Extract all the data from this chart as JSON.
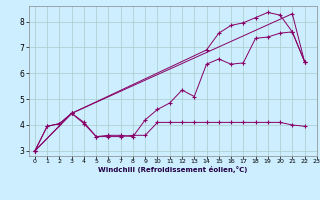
{
  "xlabel": "Windchill (Refroidissement éolien,°C)",
  "bg_color": "#cceeff",
  "grid_color": "#aacccc",
  "line_color": "#880066",
  "xlim": [
    -0.5,
    23
  ],
  "ylim": [
    2.8,
    8.6
  ],
  "xticks": [
    0,
    1,
    2,
    3,
    4,
    5,
    6,
    7,
    8,
    9,
    10,
    11,
    12,
    13,
    14,
    15,
    16,
    17,
    18,
    19,
    20,
    21,
    22,
    23
  ],
  "yticks": [
    3,
    4,
    5,
    6,
    7,
    8
  ],
  "series": [
    {
      "x": [
        0,
        1,
        2,
        3,
        4,
        5,
        6,
        7,
        8,
        9,
        10,
        11,
        12,
        13,
        14,
        15,
        16,
        17,
        18,
        19,
        20,
        21,
        22
      ],
      "y": [
        3.0,
        3.95,
        4.05,
        4.45,
        4.05,
        3.55,
        3.55,
        3.55,
        3.6,
        3.6,
        4.1,
        4.1,
        4.1,
        4.1,
        4.1,
        4.1,
        4.1,
        4.1,
        4.1,
        4.1,
        4.1,
        4.0,
        3.95
      ]
    },
    {
      "x": [
        0,
        1,
        2,
        3,
        4,
        5,
        6,
        7,
        8,
        9,
        10,
        11,
        12,
        13,
        14,
        15,
        16,
        17,
        18,
        19,
        20,
        21,
        22
      ],
      "y": [
        3.0,
        3.95,
        4.05,
        4.45,
        4.1,
        3.55,
        3.6,
        3.6,
        3.55,
        4.2,
        4.6,
        4.85,
        5.35,
        5.1,
        6.35,
        6.55,
        6.35,
        6.4,
        7.35,
        7.4,
        7.55,
        7.6,
        6.45
      ]
    },
    {
      "x": [
        0,
        3,
        21,
        22
      ],
      "y": [
        3.0,
        4.45,
        8.3,
        6.45
      ]
    },
    {
      "x": [
        0,
        3,
        14,
        15,
        16,
        17,
        18,
        19,
        20,
        21,
        22
      ],
      "y": [
        3.0,
        4.45,
        6.9,
        7.55,
        7.85,
        7.95,
        8.15,
        8.35,
        8.25,
        7.6,
        6.45
      ]
    }
  ]
}
